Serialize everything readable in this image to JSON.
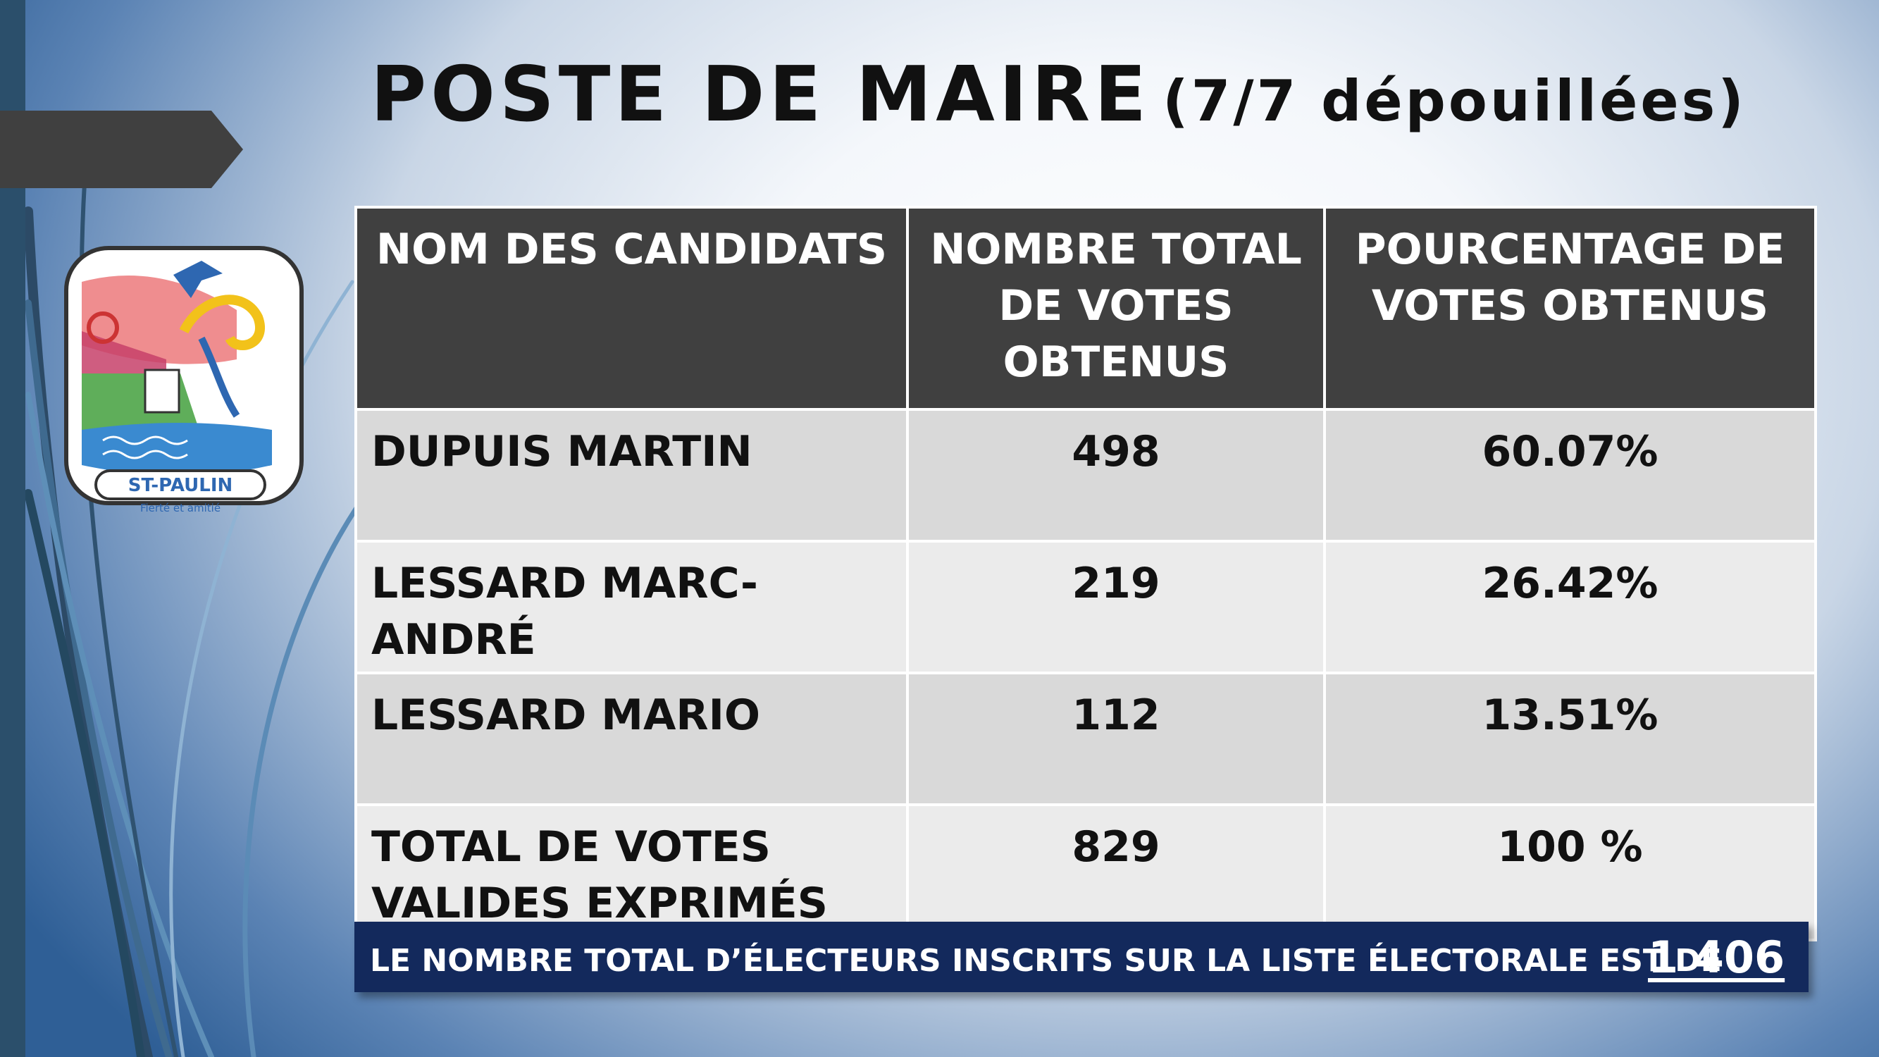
{
  "title": {
    "main": "POSTE DE MAIRE",
    "sub": "(7/7 dépouillées)"
  },
  "logo": {
    "text": "ST-PAULIN",
    "motto": "Fierté et amitié"
  },
  "table": {
    "headers": [
      "NOM DES CANDIDATS",
      "NOMBRE TOTAL DE VOTES OBTENUS",
      "POURCENTAGE DE VOTES OBTENUS"
    ],
    "rows": [
      {
        "name": "DUPUIS MARTIN",
        "votes": "498",
        "percent": "60.07%"
      },
      {
        "name": "LESSARD MARC-ANDRÉ",
        "votes": "219",
        "percent": "26.42%"
      },
      {
        "name": "LESSARD MARIO",
        "votes": "112",
        "percent": "13.51%"
      }
    ],
    "total": {
      "label": "TOTAL DE VOTES VALIDES EXPRIMÉS",
      "votes": "829",
      "percent": "100 %"
    }
  },
  "footer": {
    "text": "LE NOMBRE TOTAL D’ÉLECTEURS INSCRITS SUR LA LISTE ÉLECTORALE EST DE",
    "value": "1 406"
  },
  "colors": {
    "header_bg": "#404040",
    "row_dark": "#d9d9d9",
    "row_light": "#ebebeb",
    "footer_bg": "#13295c",
    "accent_blue": "#2f5f96"
  }
}
